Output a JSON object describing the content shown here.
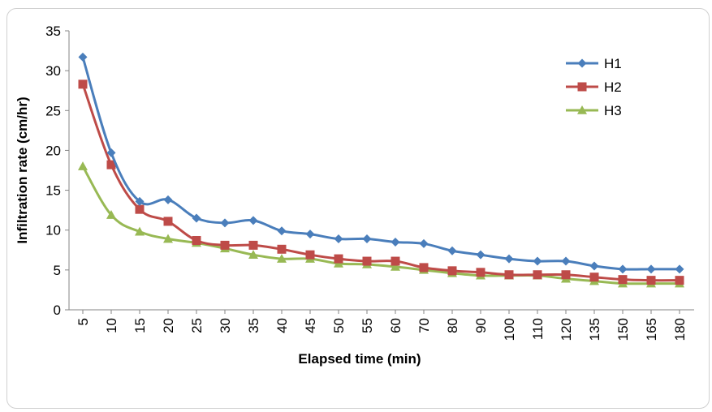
{
  "chart_data": {
    "type": "line",
    "title": "",
    "xlabel": "Elapsed time (min)",
    "ylabel": "Infiltration rate (cm/hr)",
    "ylim": [
      0,
      35
    ],
    "yticks": [
      "0",
      "5",
      "10",
      "15",
      "20",
      "25",
      "30",
      "35"
    ],
    "categories": [
      "5",
      "10",
      "15",
      "20",
      "25",
      "30",
      "35",
      "40",
      "45",
      "50",
      "55",
      "60",
      "70",
      "80",
      "90",
      "100",
      "110",
      "120",
      "135",
      "150",
      "165",
      "180"
    ],
    "grid": false,
    "legend_position": "top-right",
    "series": [
      {
        "name": "H1",
        "color": "#4a7ebb",
        "marker": "diamond",
        "values": [
          31.7,
          19.7,
          13.6,
          13.8,
          11.5,
          10.9,
          11.2,
          9.9,
          9.5,
          8.9,
          8.9,
          8.5,
          8.3,
          7.4,
          6.9,
          6.4,
          6.1,
          6.1,
          5.5,
          5.1,
          5.1,
          5.1
        ]
      },
      {
        "name": "H2",
        "color": "#be4b48",
        "marker": "square",
        "values": [
          28.3,
          18.2,
          12.6,
          11.1,
          8.7,
          8.1,
          8.1,
          7.6,
          6.9,
          6.4,
          6.1,
          6.1,
          5.3,
          4.9,
          4.7,
          4.4,
          4.4,
          4.4,
          4.1,
          3.8,
          3.7,
          3.7
        ]
      },
      {
        "name": "H3",
        "color": "#98b954",
        "marker": "triangle",
        "values": [
          18.0,
          11.9,
          9.8,
          8.9,
          8.4,
          7.7,
          6.9,
          6.4,
          6.4,
          5.8,
          5.7,
          5.4,
          5.0,
          4.6,
          4.3,
          4.3,
          4.3,
          3.9,
          3.6,
          3.3,
          3.3,
          3.3
        ]
      }
    ]
  }
}
